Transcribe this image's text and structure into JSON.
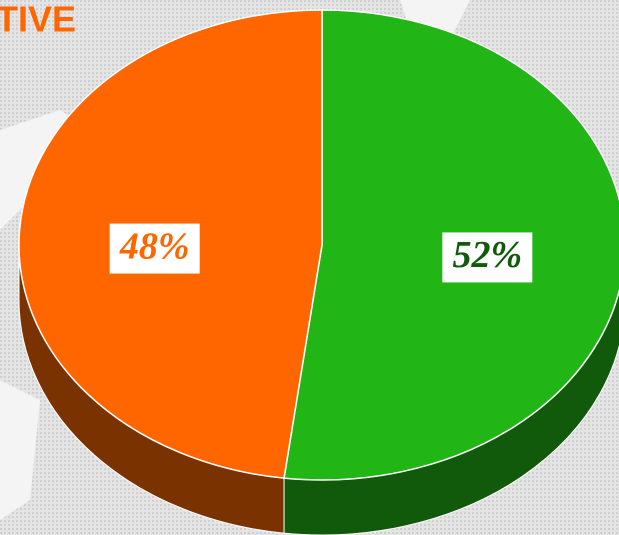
{
  "chart_data": {
    "type": "pie",
    "title": "TIVE",
    "values": [
      52,
      48
    ],
    "value_labels": [
      "52%",
      "48%"
    ],
    "colors": [
      "#22b516",
      "#ff6600"
    ],
    "side_colors": [
      "#115a0c",
      "#7a3300"
    ]
  }
}
